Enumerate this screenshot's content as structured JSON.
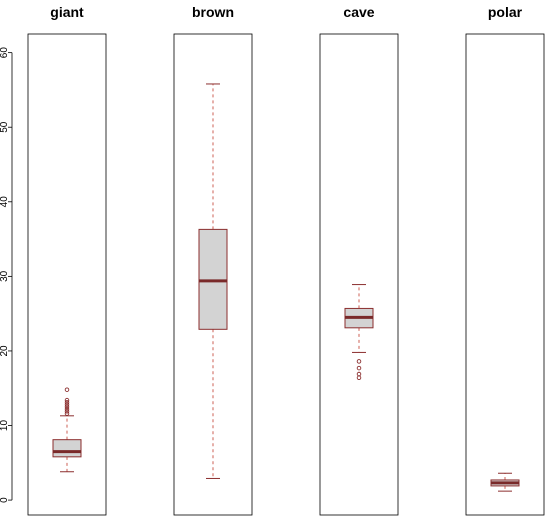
{
  "chart_data": {
    "type": "boxplot",
    "ylim": [
      -2,
      62.5
    ],
    "y_ticks": [
      "0",
      "10",
      "20",
      "30",
      "40",
      "50",
      "60"
    ],
    "colors": {
      "box_fill": "#d3d3d3",
      "box_stroke": "#8b2e2e",
      "median": "#7a2a2a",
      "whisker": "#c0392b",
      "frame": "#000000"
    },
    "panels": [
      {
        "title": "giant",
        "q1": 5.8,
        "median": 6.5,
        "q3": 8.1,
        "whisker_low": 3.8,
        "whisker_high": 11.3,
        "outliers": [
          11.6,
          11.9,
          12.2,
          12.5,
          12.8,
          13.1,
          13.4,
          14.8
        ]
      },
      {
        "title": "brown",
        "q1": 22.9,
        "median": 29.4,
        "q3": 36.3,
        "whisker_low": 2.9,
        "whisker_high": 55.8,
        "outliers": []
      },
      {
        "title": "cave",
        "q1": 23.1,
        "median": 24.5,
        "q3": 25.7,
        "whisker_low": 19.8,
        "whisker_high": 28.9,
        "outliers": [
          18.6,
          17.7,
          16.9,
          16.4
        ]
      },
      {
        "title": "polar",
        "q1": 1.9,
        "median": 2.3,
        "q3": 2.7,
        "whisker_low": 1.2,
        "whisker_high": 3.6,
        "outliers": []
      }
    ]
  }
}
